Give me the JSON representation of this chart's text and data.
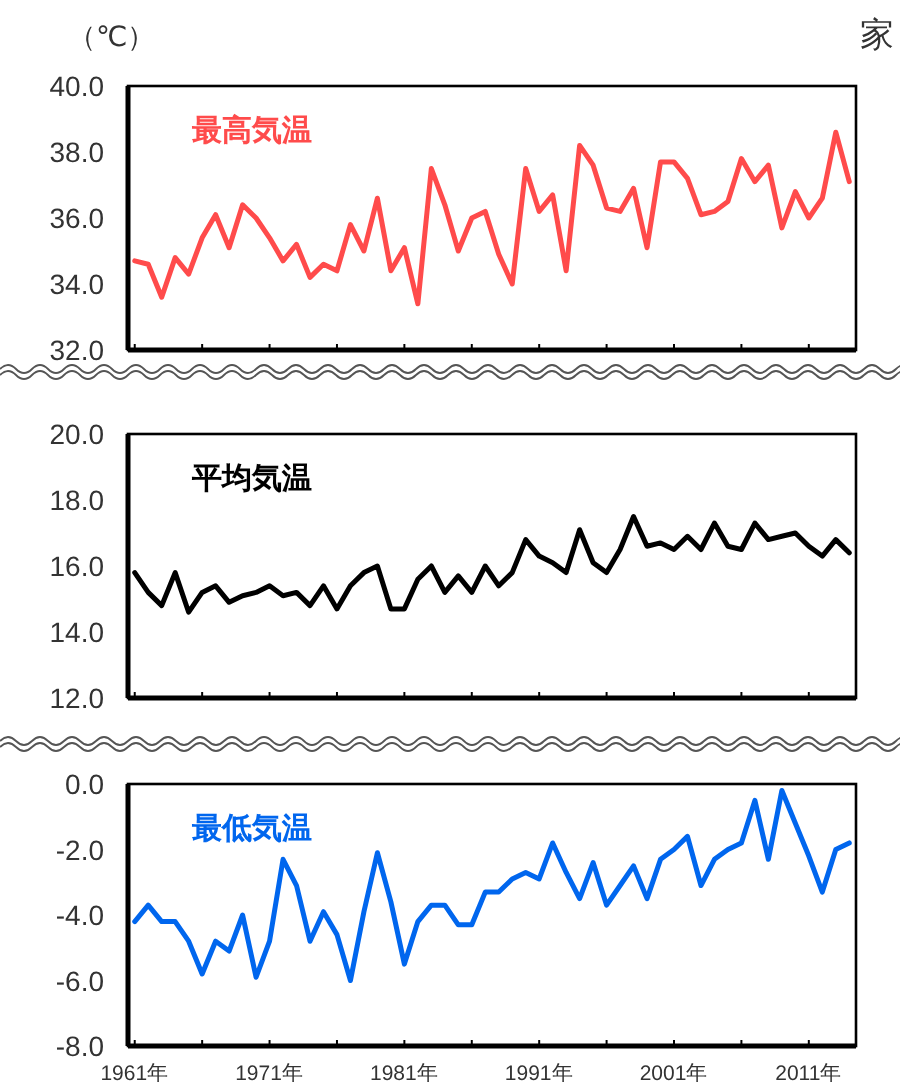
{
  "chart_data": [
    {
      "type": "line",
      "ylabel": "（℃）",
      "annotations": [
        "家"
      ],
      "tick_labels": "y",
      "x": [
        1961,
        1962,
        1963,
        1964,
        1965,
        1966,
        1967,
        1968,
        1969,
        1970,
        1971,
        1972,
        1973,
        1974,
        1975,
        1976,
        1977,
        1978,
        1979,
        1980,
        1981,
        1982,
        1983,
        1984,
        1985,
        1986,
        1987,
        1988,
        1989,
        1990,
        1991,
        1992,
        1993,
        1994,
        1995,
        1996,
        1997,
        1998,
        1999,
        2000,
        2001,
        2002,
        2003,
        2004,
        2005,
        2006,
        2007,
        2008,
        2009,
        2010,
        2011,
        2012,
        2013,
        2014
      ],
      "xlim": [
        1960.5,
        2014.5
      ],
      "xticks": [
        {
          "value": 1961,
          "label": null
        },
        {
          "value": 1966,
          "label": null
        },
        {
          "value": 1971,
          "label": null
        },
        {
          "value": 1976,
          "label": null
        },
        {
          "value": 1981,
          "label": null
        },
        {
          "value": 1986,
          "label": null
        },
        {
          "value": 1991,
          "label": null
        },
        {
          "value": 1996,
          "label": null
        },
        {
          "value": 2001,
          "label": null
        },
        {
          "value": 2006,
          "label": null
        },
        {
          "value": 2011,
          "label": null
        }
      ],
      "ylim": [
        32,
        40
      ],
      "yticks": [
        {
          "value": 32,
          "label": "32.0"
        },
        {
          "value": 34,
          "label": "34.0"
        },
        {
          "value": 36,
          "label": "36.0"
        },
        {
          "value": 38,
          "label": "38.0"
        },
        {
          "value": 40,
          "label": "40.0"
        }
      ],
      "series": [
        {
          "name": "最高気温",
          "color": "#ff4b4b",
          "values": [
            34.7,
            34.6,
            33.6,
            34.8,
            34.3,
            35.4,
            36.1,
            35.1,
            36.4,
            36.0,
            35.4,
            34.7,
            35.2,
            34.2,
            34.6,
            34.4,
            35.8,
            35.0,
            36.6,
            34.4,
            35.1,
            33.4,
            37.5,
            36.4,
            35.0,
            36.0,
            36.2,
            34.9,
            34.0,
            37.5,
            36.2,
            36.7,
            34.4,
            38.2,
            37.6,
            36.3,
            36.2,
            36.9,
            35.1,
            37.7,
            37.7,
            37.2,
            36.1,
            36.2,
            36.5,
            37.8,
            37.1,
            37.6,
            35.7,
            36.8,
            36.0,
            36.6,
            38.6,
            37.1
          ]
        }
      ]
    },
    {
      "type": "line",
      "tick_labels": "y",
      "x": [
        1961,
        1962,
        1963,
        1964,
        1965,
        1966,
        1967,
        1968,
        1969,
        1970,
        1971,
        1972,
        1973,
        1974,
        1975,
        1976,
        1977,
        1978,
        1979,
        1980,
        1981,
        1982,
        1983,
        1984,
        1985,
        1986,
        1987,
        1988,
        1989,
        1990,
        1991,
        1992,
        1993,
        1994,
        1995,
        1996,
        1997,
        1998,
        1999,
        2000,
        2001,
        2002,
        2003,
        2004,
        2005,
        2006,
        2007,
        2008,
        2009,
        2010,
        2011,
        2012,
        2013,
        2014
      ],
      "xlim": [
        1960.5,
        2014.5
      ],
      "xticks": [
        {
          "value": 1961,
          "label": null
        },
        {
          "value": 1966,
          "label": null
        },
        {
          "value": 1971,
          "label": null
        },
        {
          "value": 1976,
          "label": null
        },
        {
          "value": 1981,
          "label": null
        },
        {
          "value": 1986,
          "label": null
        },
        {
          "value": 1991,
          "label": null
        },
        {
          "value": 1996,
          "label": null
        },
        {
          "value": 2001,
          "label": null
        },
        {
          "value": 2006,
          "label": null
        },
        {
          "value": 2011,
          "label": null
        }
      ],
      "ylim": [
        12,
        20
      ],
      "yticks": [
        {
          "value": 12,
          "label": "12.0"
        },
        {
          "value": 14,
          "label": "14.0"
        },
        {
          "value": 16,
          "label": "16.0"
        },
        {
          "value": 18,
          "label": "18.0"
        },
        {
          "value": 20,
          "label": "20.0"
        }
      ],
      "series": [
        {
          "name": "平均気温",
          "color": "#000000",
          "values": [
            15.8,
            15.2,
            14.8,
            15.8,
            14.6,
            15.2,
            15.4,
            14.9,
            15.1,
            15.2,
            15.4,
            15.1,
            15.2,
            14.8,
            15.4,
            14.7,
            15.4,
            15.8,
            16.0,
            14.7,
            14.7,
            15.6,
            16.0,
            15.2,
            15.7,
            15.2,
            16.0,
            15.4,
            15.8,
            16.8,
            16.3,
            16.1,
            15.8,
            17.1,
            16.1,
            15.8,
            16.5,
            17.5,
            16.6,
            16.7,
            16.5,
            16.9,
            16.5,
            17.3,
            16.6,
            16.5,
            17.3,
            16.8,
            16.9,
            17.0,
            16.6,
            16.3,
            16.8,
            16.4
          ]
        }
      ]
    },
    {
      "type": "line",
      "x": [
        1961,
        1962,
        1963,
        1964,
        1965,
        1966,
        1967,
        1968,
        1969,
        1970,
        1971,
        1972,
        1973,
        1974,
        1975,
        1976,
        1977,
        1978,
        1979,
        1980,
        1981,
        1982,
        1983,
        1984,
        1985,
        1986,
        1987,
        1988,
        1989,
        1990,
        1991,
        1992,
        1993,
        1994,
        1995,
        1996,
        1997,
        1998,
        1999,
        2000,
        2001,
        2002,
        2003,
        2004,
        2005,
        2006,
        2007,
        2008,
        2009,
        2010,
        2011,
        2012,
        2013,
        2014
      ],
      "xlim": [
        1960.5,
        2014.5
      ],
      "xticks": [
        {
          "value": 1961,
          "label": "1961年"
        },
        {
          "value": 1966,
          "label": null
        },
        {
          "value": 1971,
          "label": "1971年"
        },
        {
          "value": 1976,
          "label": null
        },
        {
          "value": 1981,
          "label": "1981年"
        },
        {
          "value": 1986,
          "label": null
        },
        {
          "value": 1991,
          "label": "1991年"
        },
        {
          "value": 1996,
          "label": null
        },
        {
          "value": 2001,
          "label": "2001年"
        },
        {
          "value": 2006,
          "label": null
        },
        {
          "value": 2011,
          "label": "2011年"
        }
      ],
      "ylim": [
        -8,
        0
      ],
      "yticks": [
        {
          "value": -8,
          "label": "-8.0"
        },
        {
          "value": -6,
          "label": "-6.0"
        },
        {
          "value": -4,
          "label": "-4.0"
        },
        {
          "value": -2,
          "label": "-2.0"
        },
        {
          "value": 0,
          "label": "0.0"
        }
      ],
      "series": [
        {
          "name": "最低気温",
          "color": "#0066ee",
          "values": [
            -4.2,
            -3.7,
            -4.2,
            -4.2,
            -4.8,
            -5.8,
            -4.8,
            -5.1,
            -4.0,
            -5.9,
            -4.8,
            -2.3,
            -3.1,
            -4.8,
            -3.9,
            -4.6,
            -6.0,
            -3.9,
            -2.1,
            -3.6,
            -5.5,
            -4.2,
            -3.7,
            -3.7,
            -4.3,
            -4.3,
            -3.3,
            -3.3,
            -2.9,
            -2.7,
            -2.9,
            -1.8,
            -2.7,
            -3.5,
            -2.4,
            -3.7,
            -3.1,
            -2.5,
            -3.5,
            -2.3,
            -2.0,
            -1.6,
            -3.1,
            -2.3,
            -2.0,
            -1.8,
            -0.5,
            -2.3,
            -0.2,
            -1.2,
            -2.2,
            -3.3,
            -2.0,
            -1.8
          ]
        }
      ]
    }
  ]
}
